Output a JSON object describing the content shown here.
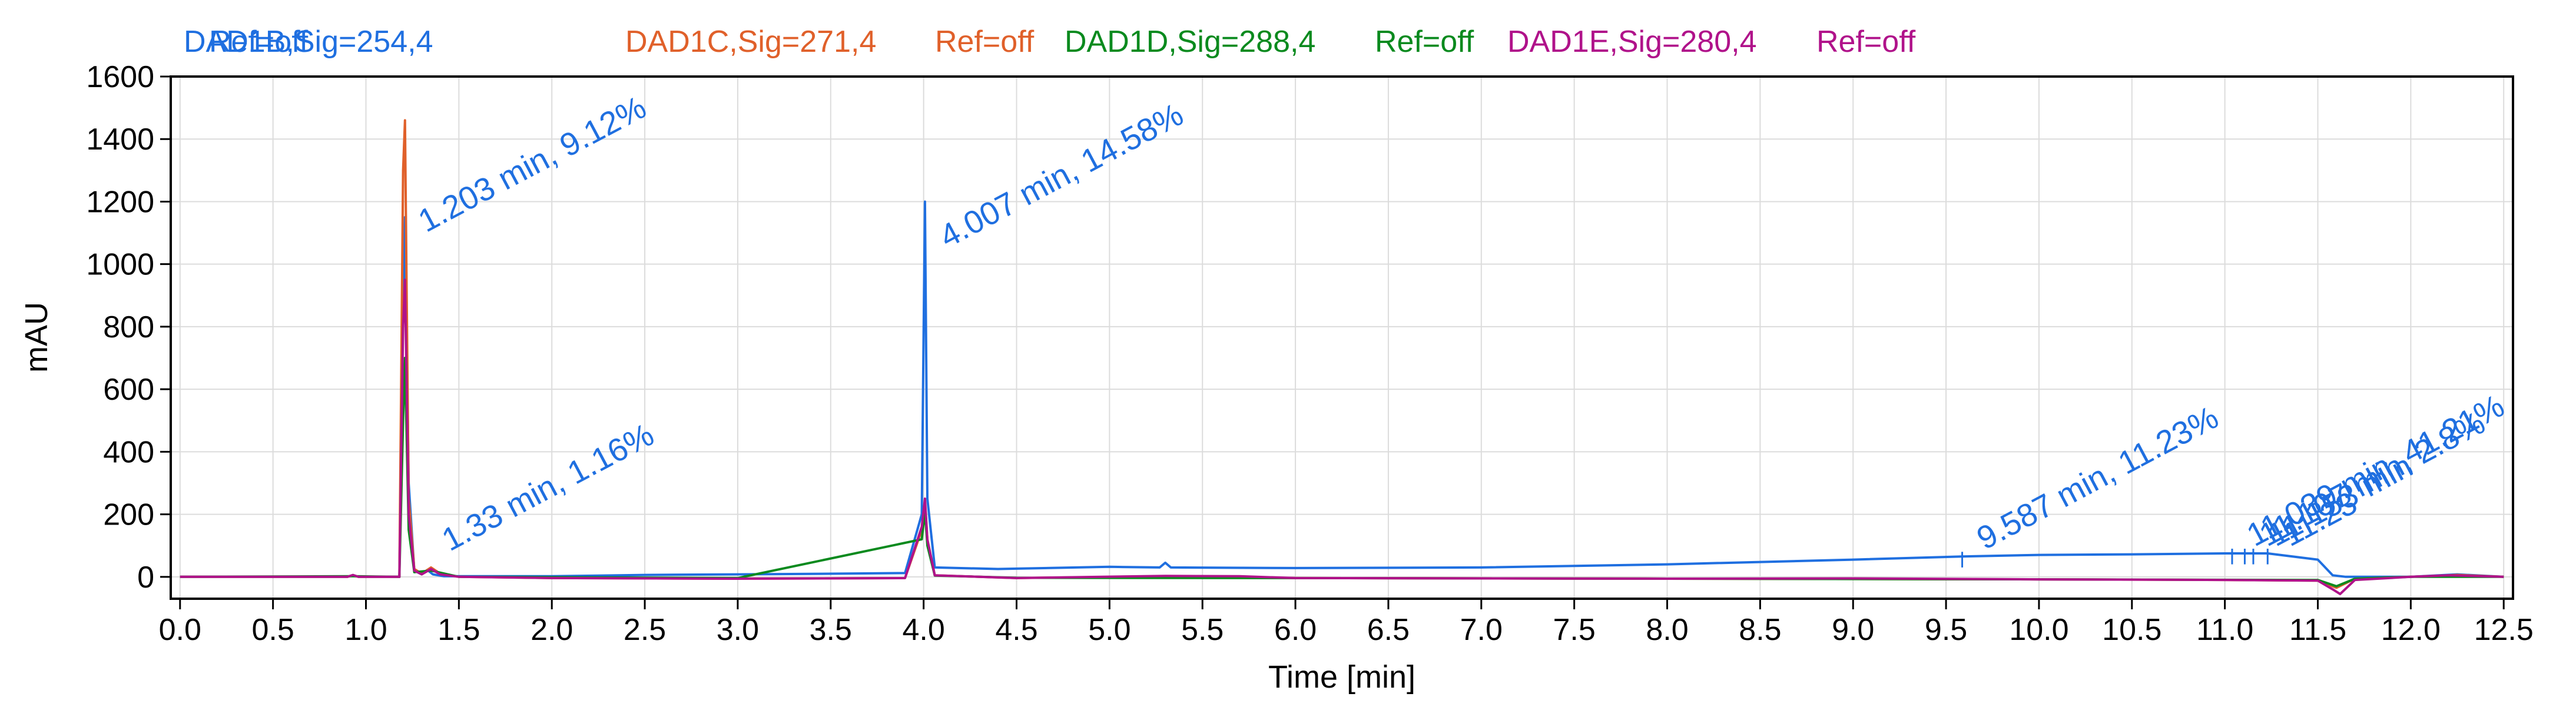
{
  "chart_data": {
    "type": "line",
    "title": "",
    "xlabel": "Time [min]",
    "ylabel": "mAU",
    "xlim": [
      0,
      12.5
    ],
    "ylim": [
      -70,
      1600
    ],
    "grid": true,
    "legend_position": "top-left",
    "x_ticks": [
      "0.0",
      "0.5",
      "1.0",
      "1.5",
      "2.0",
      "2.5",
      "3.0",
      "3.5",
      "4.0",
      "4.5",
      "5.0",
      "5.5",
      "6.0",
      "6.5",
      "7.0",
      "7.5",
      "8.0",
      "8.5",
      "9.0",
      "9.5",
      "10.0",
      "10.5",
      "11.0",
      "11.5",
      "12.0",
      "12.5"
    ],
    "y_ticks": [
      "0",
      "200",
      "400",
      "600",
      "800",
      "1000",
      "1200",
      "1400",
      "1600"
    ],
    "legend": [
      {
        "label": "DAD1B,Sig=254,4",
        "ref": "Ref=off",
        "color": "#1f6fe0"
      },
      {
        "label": "DAD1C,Sig=271,4",
        "ref": "Ref=off",
        "color": "#e0602a"
      },
      {
        "label": "DAD1D,Sig=288,4",
        "ref": "Ref=off",
        "color": "#0a8a1e"
      },
      {
        "label": "DAD1E,Sig=280,4",
        "ref": "Ref=off",
        "color": "#b0128a"
      }
    ],
    "series": [
      {
        "name": "DAD1B,Sig=254,4",
        "color": "#1f6fe0",
        "x": [
          0,
          0.9,
          0.93,
          0.96,
          1.18,
          1.2,
          1.21,
          1.23,
          1.26,
          1.3,
          1.33,
          1.36,
          1.42,
          2.0,
          2.5,
          3.0,
          3.5,
          3.9,
          3.99,
          4.007,
          4.02,
          4.06,
          4.4,
          5.0,
          5.27,
          5.3,
          5.33,
          6.0,
          7.0,
          8.0,
          9.0,
          9.587,
          10.0,
          10.5,
          11.0,
          11.039,
          11.107,
          11.153,
          11.23,
          11.5,
          11.58,
          11.65,
          12.0,
          12.25,
          12.5
        ],
        "y": [
          0,
          0,
          5,
          0,
          0,
          900,
          1150,
          300,
          20,
          8,
          22,
          8,
          2,
          2,
          6,
          8,
          10,
          12,
          200,
          1200,
          250,
          30,
          25,
          32,
          30,
          45,
          30,
          28,
          30,
          40,
          55,
          65,
          70,
          72,
          75,
          75,
          75,
          75,
          75,
          55,
          5,
          0,
          0,
          8,
          0
        ]
      },
      {
        "name": "DAD1C,Sig=271,4",
        "color": "#e0602a",
        "x": [
          0,
          0.9,
          0.93,
          0.96,
          1.18,
          1.2,
          1.21,
          1.23,
          1.26,
          1.3,
          1.35,
          1.4,
          1.5,
          2.0,
          3.0,
          3.9,
          3.99,
          4.007,
          4.02,
          4.06,
          4.5,
          5.3,
          6.0,
          8.0,
          10.0,
          11.0,
          11.5,
          11.6,
          11.7,
          12.0,
          12.25,
          12.5
        ],
        "y": [
          0,
          0,
          4,
          0,
          0,
          1300,
          1460,
          250,
          25,
          10,
          30,
          10,
          0,
          -4,
          -6,
          -4,
          150,
          240,
          120,
          5,
          -4,
          2,
          -4,
          -6,
          -8,
          -10,
          -12,
          -35,
          -6,
          0,
          6,
          0
        ]
      },
      {
        "name": "DAD1D,Sig=288,4",
        "color": "#0a8a1e",
        "x": [
          0,
          0.93,
          1.18,
          1.2,
          1.21,
          1.23,
          1.26,
          1.35,
          1.5,
          3.0,
          3.99,
          4.007,
          4.02,
          4.06,
          4.5,
          6.0,
          8.0,
          10.0,
          11.5,
          11.6,
          11.7,
          12.0,
          12.5
        ],
        "y": [
          0,
          2,
          0,
          500,
          700,
          150,
          15,
          20,
          0,
          -4,
          120,
          210,
          100,
          4,
          -3,
          -4,
          -6,
          -8,
          -10,
          -30,
          -6,
          0,
          0
        ]
      },
      {
        "name": "DAD1E,Sig=280,4",
        "color": "#b0128a",
        "x": [
          0,
          0.9,
          0.93,
          0.96,
          1.18,
          1.2,
          1.21,
          1.23,
          1.26,
          1.3,
          1.35,
          1.4,
          1.5,
          2.0,
          3.0,
          3.9,
          3.99,
          4.007,
          4.02,
          4.06,
          4.5,
          5.3,
          5.7,
          6.0,
          8.0,
          9.0,
          10.0,
          11.0,
          11.5,
          11.58,
          11.62,
          11.7,
          12.0,
          12.2,
          12.5
        ],
        "y": [
          0,
          0,
          6,
          0,
          0,
          800,
          950,
          200,
          20,
          8,
          25,
          8,
          0,
          -4,
          -6,
          -4,
          160,
          250,
          120,
          5,
          -4,
          3,
          2,
          -4,
          -6,
          -5,
          -8,
          -10,
          -12,
          -40,
          -55,
          -10,
          0,
          5,
          0
        ]
      }
    ],
    "annotations": [
      {
        "text": "1.203 min, 9.12%",
        "x": 1.203,
        "y": 1100,
        "color": "#1f6fe0"
      },
      {
        "text": "1.33 min, 1.16%",
        "x": 1.33,
        "y": 80,
        "color": "#1f6fe0"
      },
      {
        "text": "4.007 min, 14.58%",
        "x": 4.007,
        "y": 1050,
        "color": "#1f6fe0"
      },
      {
        "text": "9.587 min, 11.23%",
        "x": 9.587,
        "y": 85,
        "color": "#1f6fe0"
      },
      {
        "text": "11.039 min, 41.21%",
        "x": 11.039,
        "y": 95,
        "color": "#1f6fe0"
      },
      {
        "text": "11.107 min, 2.8%",
        "x": 11.107,
        "y": 95,
        "color": "#1f6fe0"
      },
      {
        "text": "11.153 min",
        "x": 11.153,
        "y": 95,
        "color": "#1f6fe0"
      },
      {
        "text": "11.23",
        "x": 11.23,
        "y": 95,
        "color": "#1f6fe0"
      }
    ]
  }
}
